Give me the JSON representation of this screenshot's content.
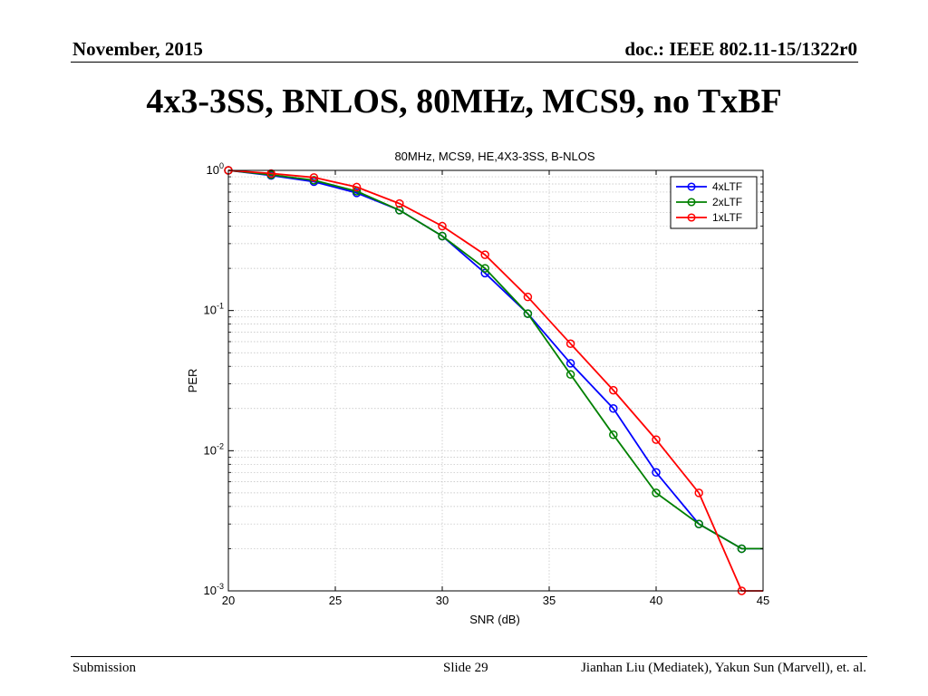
{
  "header": {
    "date": "November, 2015",
    "doc": "doc.: IEEE 802.11-15/1322r0"
  },
  "slide_title": "4x3-3SS, BNLOS, 80MHz, MCS9, no TxBF",
  "footer": {
    "left": "Submission",
    "slide": "Slide 29",
    "authors": "Jianhan Liu (Mediatek), Yakun Sun (Marvell),  et. al."
  },
  "chart_data": {
    "type": "line",
    "title": "80MHz, MCS9, HE,4X3-3SS, B-NLOS",
    "xlabel": "SNR (dB)",
    "ylabel": "PER",
    "xlim": [
      20,
      45
    ],
    "ylim": [
      0.001,
      1
    ],
    "y_scale": "log",
    "grid": true,
    "legend_position": "top-right",
    "x_ticks": [
      {
        "value": 20,
        "label": "20"
      },
      {
        "value": 25,
        "label": "25"
      },
      {
        "value": 30,
        "label": "30"
      },
      {
        "value": 35,
        "label": "35"
      },
      {
        "value": 40,
        "label": "40"
      },
      {
        "value": 45,
        "label": "45"
      }
    ],
    "y_ticks": [
      {
        "value": 1,
        "base": "10",
        "exp": "0"
      },
      {
        "value": 0.1,
        "base": "10",
        "exp": "-1"
      },
      {
        "value": 0.01,
        "base": "10",
        "exp": "-2"
      },
      {
        "value": 0.001,
        "base": "10",
        "exp": "-3"
      }
    ],
    "series": [
      {
        "name": "4xLTF",
        "color": "#0000ff",
        "x": [
          20,
          22,
          24,
          26,
          28,
          30,
          32,
          34,
          36,
          38,
          40,
          42,
          44,
          45
        ],
        "y": [
          1.0,
          0.92,
          0.83,
          0.69,
          0.52,
          0.34,
          0.185,
          0.095,
          0.042,
          0.02,
          0.007,
          0.003,
          0.002,
          0.002
        ],
        "markers": [
          true,
          true,
          true,
          true,
          true,
          true,
          true,
          true,
          true,
          true,
          true,
          true,
          true,
          false
        ]
      },
      {
        "name": "2xLTF",
        "color": "#008000",
        "x": [
          20,
          22,
          24,
          26,
          28,
          30,
          32,
          34,
          36,
          38,
          40,
          42,
          44,
          45
        ],
        "y": [
          1.0,
          0.93,
          0.85,
          0.71,
          0.52,
          0.34,
          0.2,
          0.095,
          0.035,
          0.013,
          0.005,
          0.003,
          0.002,
          0.002
        ],
        "markers": [
          true,
          true,
          true,
          true,
          true,
          true,
          true,
          true,
          true,
          true,
          true,
          true,
          true,
          false
        ]
      },
      {
        "name": "1xLTF",
        "color": "#ff0000",
        "x": [
          20,
          22,
          24,
          26,
          28,
          30,
          32,
          34,
          36,
          38,
          40,
          42,
          44,
          45
        ],
        "y": [
          1.0,
          0.95,
          0.89,
          0.76,
          0.58,
          0.4,
          0.25,
          0.125,
          0.058,
          0.027,
          0.012,
          0.005,
          0.001,
          0.001
        ],
        "markers": [
          true,
          true,
          true,
          true,
          true,
          true,
          true,
          true,
          true,
          true,
          true,
          true,
          true,
          false
        ]
      }
    ]
  }
}
